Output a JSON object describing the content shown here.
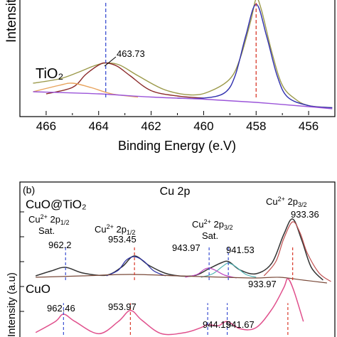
{
  "chart_data": [
    {
      "type": "line",
      "panel": "a",
      "sample_label": "TiO₂",
      "ylabel": "Intensit",
      "xlabel": "Binding Energy (e.V)",
      "x_ticks": [
        "466",
        "464",
        "462",
        "460",
        "458",
        "456"
      ],
      "xlim": [
        467,
        455
      ],
      "peak_annotations": [
        {
          "x": 463.73,
          "text": "463.73"
        }
      ],
      "dashed_markers": [
        {
          "x": 463.73,
          "color": "#3b4fd1"
        },
        {
          "x": 458.0,
          "color": "#d93a2b"
        }
      ],
      "series": [
        {
          "kind": "envelope",
          "color": "#9c9a4b",
          "x": [
            466.5,
            465.5,
            464.8,
            464.2,
            463.73,
            463.2,
            462.5,
            461.5,
            460.5,
            459.8,
            459.0,
            458.6,
            458.2,
            458.0,
            457.8,
            457.4,
            457.0,
            456.5,
            456.0,
            455.1
          ],
          "y": [
            0.26,
            0.3,
            0.36,
            0.42,
            0.45,
            0.43,
            0.33,
            0.2,
            0.15,
            0.18,
            0.3,
            0.5,
            0.85,
            1.05,
            0.95,
            0.55,
            0.24,
            0.11,
            0.05,
            0.03
          ]
        },
        {
          "kind": "Ti 2p1/2 fit",
          "color": "#8b2a2a",
          "x": [
            466.0,
            465.0,
            464.5,
            464.0,
            463.73,
            463.3,
            462.8,
            462.0,
            461.0,
            460.0
          ],
          "y": [
            0.16,
            0.22,
            0.34,
            0.43,
            0.45,
            0.42,
            0.33,
            0.19,
            0.14,
            0.12
          ]
        },
        {
          "kind": "Ti 2p3/2 fit",
          "color": "#2f2fae",
          "x": [
            461.0,
            460.0,
            459.2,
            458.8,
            458.4,
            458.0,
            457.6,
            457.2,
            456.8,
            456.0,
            455.1
          ],
          "y": [
            0.12,
            0.12,
            0.17,
            0.33,
            0.7,
            1.0,
            0.7,
            0.33,
            0.13,
            0.05,
            0.03
          ]
        },
        {
          "kind": "Ti4+ shoulder",
          "color": "#e8a35c",
          "x": [
            466.5,
            465.5,
            465.0,
            464.3,
            463.5,
            462.5
          ],
          "y": [
            0.18,
            0.24,
            0.26,
            0.22,
            0.16,
            0.13
          ]
        },
        {
          "kind": "background",
          "color": "#9b55d9",
          "x": [
            466.5,
            464.0,
            462.0,
            460.0,
            458.0,
            456.0,
            455.1
          ],
          "y": [
            0.18,
            0.16,
            0.13,
            0.11,
            0.08,
            0.04,
            0.02
          ]
        }
      ]
    },
    {
      "type": "line",
      "panel": "b",
      "panel_label": "(b)",
      "title": "Cu 2p",
      "ylabel": "Intensity (a.u)",
      "sample_labels": [
        {
          "text": "CuO@TiO₂"
        },
        {
          "text": "CuO"
        }
      ],
      "xlim": [
        968,
        928
      ],
      "peak_groups": [
        {
          "head": "Cu",
          "sup": "2+",
          "mid": " 2p",
          "sub": "1/2",
          "line2": "Sat."
        },
        {
          "head": "Cu",
          "sup": "2+",
          "mid": " 2p",
          "sub": "1/2",
          "line2": ""
        },
        {
          "head": "Cu",
          "sup": "2+",
          "mid": " 2p",
          "sub": "3/2",
          "line2": "Sat."
        },
        {
          "head": "Cu",
          "sup": "2+",
          "mid": " 2p",
          "sub": "3/2",
          "line2": ""
        }
      ],
      "top_annotations": [
        {
          "x": 962.2,
          "text": "962.2"
        },
        {
          "x": 953.45,
          "text": "953.45"
        },
        {
          "x": 943.97,
          "text": "943.97"
        },
        {
          "x": 941.53,
          "text": "941.53"
        },
        {
          "x": 933.36,
          "text": "933.36"
        }
      ],
      "bottom_annotations": [
        {
          "x": 962.46,
          "text": "962.46"
        },
        {
          "x": 953.97,
          "text": "953.97"
        },
        {
          "x": 944.15,
          "text": "944.15"
        },
        {
          "x": 941.67,
          "text": "941.67"
        },
        {
          "x": 933.97,
          "text": "933.97"
        }
      ],
      "series": [
        {
          "sample": "CuO@TiO2",
          "kind": "envelope",
          "color": "#333333",
          "x": [
            966,
            964,
            962.2,
            960,
            957,
            955,
            953.45,
            951.5,
            949,
            946,
            944,
            942.5,
            941.5,
            940,
            938,
            936,
            934.5,
            933.36,
            932.2,
            931,
            929.5
          ],
          "y": [
            0.2,
            0.27,
            0.32,
            0.24,
            0.21,
            0.33,
            0.48,
            0.34,
            0.22,
            0.2,
            0.3,
            0.38,
            0.4,
            0.28,
            0.23,
            0.38,
            0.78,
            1.0,
            0.7,
            0.32,
            0.14
          ]
        },
        {
          "sample": "CuO@TiO2",
          "kind": "2p1/2 fit",
          "color": "#2b2fa3",
          "x": [
            957,
            955.5,
            954.5,
            953.45,
            952.3,
            951,
            949.5
          ],
          "y": [
            0.2,
            0.28,
            0.42,
            0.47,
            0.41,
            0.27,
            0.2
          ]
        },
        {
          "sample": "CuO@TiO2",
          "kind": "satellite fit",
          "color": "#4fb3b3",
          "x": [
            945,
            943.5,
            942.3,
            941.53,
            940.6,
            939.3,
            938
          ],
          "y": [
            0.18,
            0.23,
            0.33,
            0.38,
            0.33,
            0.22,
            0.18
          ]
        },
        {
          "sample": "CuO@TiO2",
          "kind": "satellite fit",
          "color": "#c048c0",
          "x": [
            947,
            945.5,
            944.6,
            943.97,
            943.2,
            942,
            940.5
          ],
          "y": [
            0.18,
            0.22,
            0.29,
            0.31,
            0.28,
            0.21,
            0.17
          ]
        },
        {
          "sample": "CuO@TiO2",
          "kind": "2p3/2 fit",
          "color": "#c05050",
          "x": [
            937,
            935.5,
            934.5,
            933.36,
            932.4,
            931.5,
            930,
            928.5
          ],
          "y": [
            0.2,
            0.4,
            0.72,
            0.96,
            0.8,
            0.52,
            0.24,
            0.12
          ]
        },
        {
          "sample": "CuO@TiO2",
          "kind": "background",
          "color": "#7a4a3a",
          "x": [
            966,
            960,
            954,
            948,
            942,
            938,
            935,
            932,
            929
          ],
          "y": [
            0.18,
            0.2,
            0.22,
            0.2,
            0.18,
            0.17,
            0.18,
            0.14,
            0.1
          ]
        },
        {
          "sample": "CuO",
          "kind": "envelope",
          "color": "#e0508c",
          "x": [
            966,
            963.5,
            962.46,
            961,
            958,
            955.5,
            953.97,
            952.5,
            950,
            947,
            945,
            944.15,
            942.8,
            941.67,
            940,
            938,
            936,
            934.5,
            933.97,
            933.2,
            932
          ],
          "y": [
            0.12,
            0.3,
            0.42,
            0.3,
            0.1,
            0.3,
            0.48,
            0.32,
            0.1,
            0.12,
            0.2,
            0.25,
            0.23,
            0.3,
            0.18,
            0.2,
            0.5,
            0.85,
            1.0,
            0.8,
            0.3
          ]
        }
      ]
    }
  ]
}
